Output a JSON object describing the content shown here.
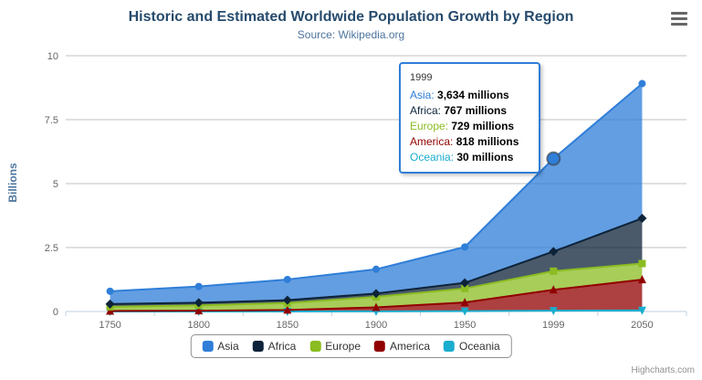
{
  "title": "Historic and Estimated Worldwide Population Growth by Region",
  "subtitle": "Source: Wikipedia.org",
  "credits": "Highcharts.com",
  "chart_data": {
    "type": "area",
    "stacking": "normal",
    "title": "Historic and Estimated Worldwide Population Growth by Region",
    "subtitle": "Source: Wikipedia.org",
    "categories": [
      "1750",
      "1800",
      "1850",
      "1900",
      "1950",
      "1999",
      "2050"
    ],
    "series": [
      {
        "name": "Asia",
        "color": "#2f7ed8",
        "marker": "circle",
        "values": [
          502,
          635,
          809,
          947,
          1402,
          3634,
          5268
        ]
      },
      {
        "name": "Africa",
        "color": "#0d233a",
        "marker": "diamond",
        "values": [
          106,
          107,
          111,
          133,
          221,
          767,
          1766
        ]
      },
      {
        "name": "Europe",
        "color": "#8bbc21",
        "marker": "square",
        "values": [
          163,
          203,
          276,
          408,
          547,
          729,
          628
        ]
      },
      {
        "name": "America",
        "color": "#910000",
        "marker": "triangle",
        "values": [
          18,
          31,
          54,
          156,
          339,
          818,
          1201
        ]
      },
      {
        "name": "Oceania",
        "color": "#1aadce",
        "marker": "triangle-down",
        "values": [
          2,
          2,
          2,
          6,
          13,
          30,
          46
        ]
      }
    ],
    "values_unit": "millions",
    "xlabel": "",
    "ylabel": "Billions",
    "yticks": [
      0,
      2.5,
      5,
      7.5,
      10
    ],
    "ylim": [
      0,
      10
    ],
    "grid": true,
    "legend_position": "bottom",
    "hover_point": {
      "series": "Asia",
      "category": "1999",
      "category_index": 5
    }
  },
  "tooltip": {
    "header": "1999",
    "rows": [
      {
        "name": "Asia",
        "value": "3,634 millions",
        "color": "#2f7ed8"
      },
      {
        "name": "Africa",
        "value": "767 millions",
        "color": "#0d233a"
      },
      {
        "name": "Europe",
        "value": "729 millions",
        "color": "#8bbc21"
      },
      {
        "name": "America",
        "value": "818 millions",
        "color": "#910000"
      },
      {
        "name": "Oceania",
        "value": "30 millions",
        "color": "#1aadce"
      }
    ]
  },
  "legend": {
    "items": [
      {
        "label": "Asia",
        "color": "#2f7ed8"
      },
      {
        "label": "Africa",
        "color": "#0d233a"
      },
      {
        "label": "Europe",
        "color": "#8bbc21"
      },
      {
        "label": "America",
        "color": "#910000"
      },
      {
        "label": "Oceania",
        "color": "#1aadce"
      }
    ]
  }
}
